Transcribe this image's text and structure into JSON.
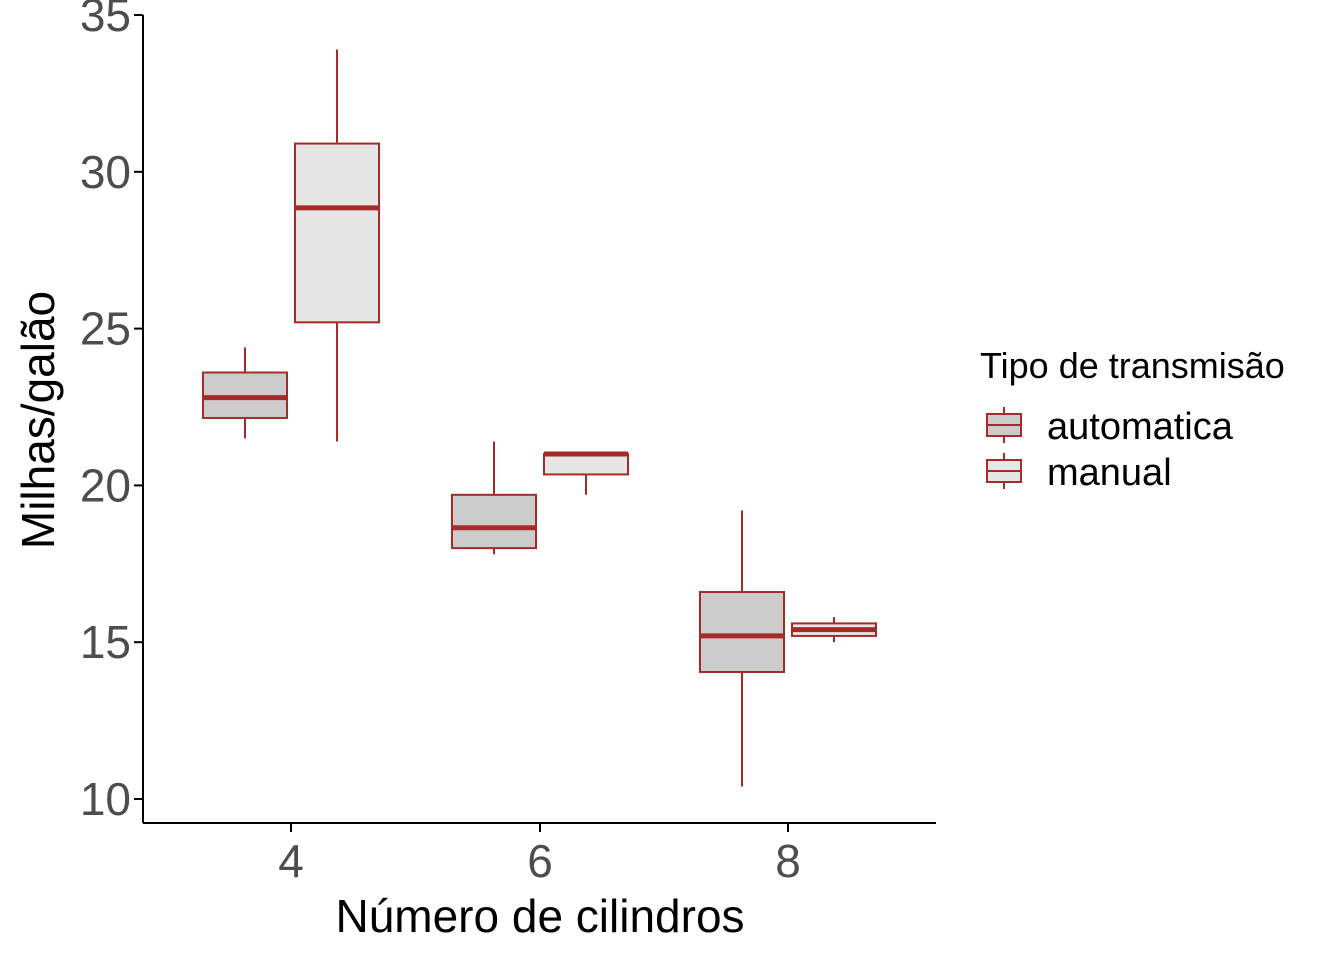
{
  "chart_data": {
    "type": "boxplot",
    "xlabel": "Número de cilindros",
    "ylabel": "Milhas/galão",
    "categories": [
      "4",
      "6",
      "8"
    ],
    "x_ticks": [
      "4",
      "6",
      "8"
    ],
    "ylim": [
      10,
      35
    ],
    "y_ticks": [
      10,
      15,
      20,
      25,
      30,
      35
    ],
    "legend": {
      "title": "Tipo de transmisão",
      "position": "right",
      "entries": [
        "automatica",
        "manual"
      ]
    },
    "colors": {
      "outline": "#a52a2a",
      "automatica_fill": "#cccccc",
      "manual_fill": "#e6e6e6",
      "axis": "#000000",
      "tick_text": "#4d4d4d"
    },
    "series": [
      {
        "name": "automatica",
        "boxes": [
          {
            "category": "4",
            "min": 21.5,
            "q1": 22.15,
            "median": 22.8,
            "q3": 23.6,
            "max": 24.4
          },
          {
            "category": "6",
            "min": 17.8,
            "q1": 18.0,
            "median": 18.65,
            "q3": 19.7,
            "max": 21.4
          },
          {
            "category": "8",
            "min": 10.4,
            "q1": 14.05,
            "median": 15.2,
            "q3": 16.6,
            "max": 19.2
          }
        ]
      },
      {
        "name": "manual",
        "boxes": [
          {
            "category": "4",
            "min": 21.4,
            "q1": 25.2,
            "median": 28.85,
            "q3": 30.9,
            "max": 33.9
          },
          {
            "category": "6",
            "min": 19.7,
            "q1": 20.35,
            "median": 21.0,
            "q3": 21.0,
            "max": 21.0
          },
          {
            "category": "8",
            "min": 15.0,
            "q1": 15.2,
            "median": 15.4,
            "q3": 15.6,
            "max": 15.8
          }
        ]
      }
    ]
  }
}
